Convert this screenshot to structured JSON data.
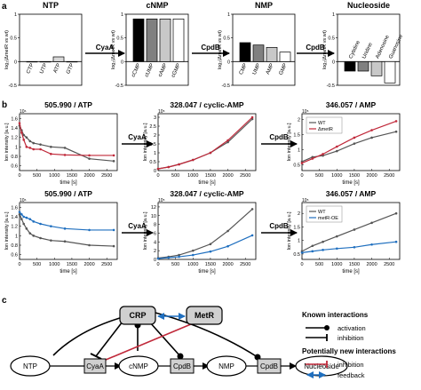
{
  "panels": {
    "a": "a",
    "b": "b",
    "c": "c"
  },
  "panel_a": {
    "ylabel": "log₂(ΔmetR vs wt)",
    "arrows": [
      "CyaA",
      "CpdB",
      "CpdB"
    ],
    "groups": [
      {
        "title": "NTP",
        "categories": [
          "CTP",
          "UTP",
          "ATP",
          "GTP"
        ],
        "values": [
          0,
          0,
          0.1,
          0
        ],
        "fills": [
          "#ffffff",
          "#ffffff",
          "#d9d9d9",
          "#ffffff"
        ],
        "yticks": [
          "1",
          "0.5",
          "0",
          "-0.5"
        ]
      },
      {
        "title": "cNMP",
        "categories": [
          "cCMP",
          "cUMP",
          "cAMP",
          "cGMP"
        ],
        "values": [
          0.9,
          0.9,
          0.9,
          0.9
        ],
        "fills": [
          "#000000",
          "#808080",
          "#c8c8c8",
          "#ffffff"
        ],
        "yticks": [
          "1",
          "0.5",
          "0",
          "-0.5"
        ]
      },
      {
        "title": "NMP",
        "categories": [
          "CMP",
          "UMP",
          "AMP",
          "GMP"
        ],
        "values": [
          0.4,
          0.35,
          0.3,
          0.2
        ],
        "fills": [
          "#000000",
          "#808080",
          "#c8c8c8",
          "#ffffff"
        ],
        "yticks": [
          "1",
          "0.5",
          "0",
          "-0.5"
        ]
      },
      {
        "title": "Nucleoside",
        "categories": [
          "Cytidine",
          "Uridine",
          "Adenosine",
          "Guanosine"
        ],
        "values": [
          -0.2,
          -0.2,
          -0.3,
          -0.45
        ],
        "fills": [
          "#000000",
          "#808080",
          "#c8c8c8",
          "#ffffff"
        ],
        "yticks": [
          "1",
          "0.5",
          "0",
          "-0.5"
        ]
      }
    ]
  },
  "panel_b": {
    "ylabel": "Ion intensity [a.u.]",
    "xlabel": "time [s]",
    "xticks": [
      "0",
      "500",
      "1000",
      "1500",
      "2000",
      "2500"
    ],
    "arrows": [
      "CyaA",
      "CpdB"
    ],
    "rows": [
      {
        "plots": [
          {
            "title": "505.990 / ATP",
            "exp": "10⁶",
            "yticks": [
              "1.6",
              "1.4",
              "1.2",
              "1",
              "0.8",
              "0.6"
            ],
            "ymin": 0.5,
            "ymax": 1.7,
            "series": [
              {
                "color": "#555555",
                "t": [
                  0,
                  60,
                  120,
                  200,
                  300,
                  400,
                  600,
                  900,
                  1300,
                  2000,
                  2700
                ],
                "y": [
                  1.45,
                  1.35,
                  1.25,
                  1.2,
                  1.12,
                  1.08,
                  1.05,
                  1.0,
                  0.98,
                  0.75,
                  0.7
                ]
              },
              {
                "color": "#c0293a",
                "t": [
                  0,
                  60,
                  120,
                  200,
                  300,
                  400,
                  600,
                  900,
                  1300,
                  2000,
                  2700
                ],
                "y": [
                  1.5,
                  1.3,
                  1.15,
                  1.0,
                  0.98,
                  0.95,
                  0.95,
                  0.85,
                  0.83,
                  0.82,
                  0.82
                ]
              }
            ]
          },
          {
            "title": "328.047 / cyclic-AMP",
            "exp": "10⁵",
            "yticks": [
              "3",
              "2.5",
              "2",
              "1.5",
              "1",
              "0.5",
              "0"
            ],
            "ymin": 0,
            "ymax": 3.2,
            "series": [
              {
                "color": "#555555",
                "t": [
                  0,
                  300,
                  600,
                  1000,
                  1500,
                  2000,
                  2700
                ],
                "y": [
                  0.1,
                  0.2,
                  0.35,
                  0.6,
                  1.0,
                  1.6,
                  2.9
                ]
              },
              {
                "color": "#c0293a",
                "t": [
                  0,
                  300,
                  600,
                  1000,
                  1500,
                  2000,
                  2700
                ],
                "y": [
                  0.1,
                  0.2,
                  0.35,
                  0.6,
                  1.0,
                  1.7,
                  3.0
                ]
              }
            ]
          },
          {
            "title": "346.057 / AMP",
            "exp": "10⁵",
            "yticks": [
              "2",
              "1.5",
              "1",
              "0.5"
            ],
            "ymin": 0.3,
            "ymax": 2.2,
            "legend": [
              "WT",
              "ΔmetR"
            ],
            "series": [
              {
                "color": "#555555",
                "t": [
                  0,
                  300,
                  600,
                  1000,
                  1500,
                  2000,
                  2700
                ],
                "y": [
                  0.6,
                  0.75,
                  0.8,
                  0.95,
                  1.2,
                  1.4,
                  1.6
                ]
              },
              {
                "color": "#c0293a",
                "t": [
                  0,
                  300,
                  600,
                  1000,
                  1500,
                  2000,
                  2700
                ],
                "y": [
                  0.55,
                  0.7,
                  0.85,
                  1.1,
                  1.4,
                  1.65,
                  1.95
                ]
              }
            ]
          }
        ]
      },
      {
        "plots": [
          {
            "title": "505.990 / ATP",
            "exp": "10⁶",
            "yticks": [
              "1.6",
              "1.4",
              "1.2",
              "1",
              "0.8",
              "0.6"
            ],
            "ymin": 0.5,
            "ymax": 1.7,
            "series": [
              {
                "color": "#555555",
                "t": [
                  0,
                  60,
                  120,
                  200,
                  300,
                  400,
                  600,
                  900,
                  1300,
                  2000,
                  2700
                ],
                "y": [
                  1.45,
                  1.35,
                  1.25,
                  1.15,
                  1.05,
                  1.0,
                  0.95,
                  0.9,
                  0.88,
                  0.8,
                  0.78
                ]
              },
              {
                "color": "#1f6fbf",
                "t": [
                  0,
                  60,
                  120,
                  200,
                  300,
                  400,
                  600,
                  900,
                  1300,
                  2000,
                  2700
                ],
                "y": [
                  1.5,
                  1.45,
                  1.4,
                  1.38,
                  1.35,
                  1.3,
                  1.25,
                  1.2,
                  1.15,
                  1.12,
                  1.12
                ]
              }
            ]
          },
          {
            "title": "328.047 / cyclic-AMP",
            "exp": "10⁵",
            "yticks": [
              "12",
              "10",
              "8",
              "6",
              "4",
              "2",
              "0"
            ],
            "ymin": 0,
            "ymax": 13,
            "series": [
              {
                "color": "#555555",
                "t": [
                  0,
                  300,
                  600,
                  1000,
                  1500,
                  2000,
                  2700
                ],
                "y": [
                  0.3,
                  0.6,
                  1.0,
                  2.0,
                  3.5,
                  6.5,
                  11.5
                ]
              },
              {
                "color": "#1f6fbf",
                "t": [
                  0,
                  300,
                  600,
                  1000,
                  1500,
                  2000,
                  2700
                ],
                "y": [
                  0.2,
                  0.4,
                  0.6,
                  1.0,
                  1.8,
                  3.0,
                  5.5
                ]
              }
            ]
          },
          {
            "title": "346.057 / AMP",
            "exp": "10⁵",
            "yticks": [
              "2",
              "1.5",
              "1",
              "0.5"
            ],
            "ymin": 0.3,
            "ymax": 2.4,
            "legend": [
              "WT",
              "metR-OE"
            ],
            "series": [
              {
                "color": "#555555",
                "t": [
                  0,
                  300,
                  600,
                  1000,
                  1500,
                  2000,
                  2700
                ],
                "y": [
                  0.6,
                  0.8,
                  0.95,
                  1.15,
                  1.4,
                  1.65,
                  2.0
                ]
              },
              {
                "color": "#1f6fbf",
                "t": [
                  0,
                  300,
                  600,
                  1000,
                  1500,
                  2000,
                  2700
                ],
                "y": [
                  0.55,
                  0.6,
                  0.65,
                  0.7,
                  0.75,
                  0.85,
                  0.95
                ]
              }
            ]
          }
        ]
      }
    ]
  },
  "panel_c": {
    "nodes": {
      "ntp": "NTP",
      "cnmp": "cNMP",
      "nmp": "NMP",
      "nucleoside": "Nucleoside",
      "crp": "CRP",
      "metr": "MetR",
      "cyaa": "CyaA",
      "cpdb1": "CpdB",
      "cpdb2": "CpdB"
    },
    "legend": {
      "known_title": "Known interactions",
      "activation": "activation",
      "inhibition": "inhibition",
      "new_title": "Potentially new interactions",
      "new_inhibition": "inhibition",
      "feedback": "feedback"
    },
    "colors": {
      "red": "#c0293a",
      "blue": "#1f6fbf",
      "box": "#d0d0d0"
    }
  }
}
